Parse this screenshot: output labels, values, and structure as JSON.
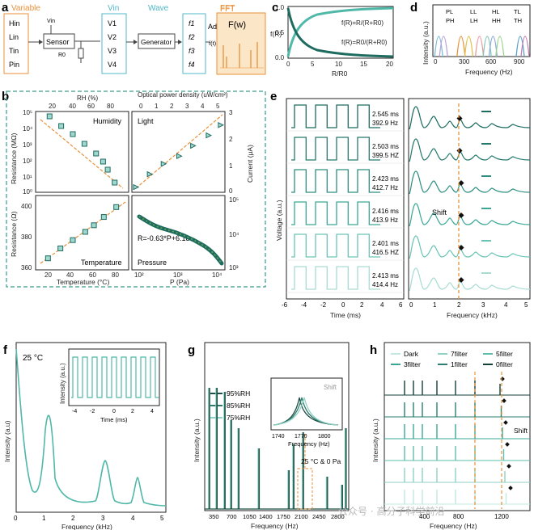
{
  "panel_labels": [
    "a",
    "b",
    "c",
    "d",
    "e",
    "f",
    "g",
    "h"
  ],
  "a": {
    "titles": {
      "variable": "Variable",
      "vin": "Vin",
      "wave": "Wave",
      "fft": "FFT"
    },
    "variables": [
      "Hin",
      "Lin",
      "Tin",
      "Pin"
    ],
    "sensor": "Sensor",
    "vin_small": "Vin",
    "r0": "R0",
    "voltages": [
      "V1",
      "V2",
      "V3",
      "V4"
    ],
    "generator": "Generator",
    "freqs": [
      "f1",
      "f2",
      "f3",
      "f4"
    ],
    "adder": "Adder",
    "adder_formula": "f(t)=∑fn",
    "fw": "F(w)",
    "colors": {
      "variable": "#e8913a",
      "vin": "#4fb8c9",
      "wave": "#4fb8c9",
      "fft": "#e8913a",
      "fft_bg": "#fbe6c8"
    }
  },
  "c": {
    "ylabel": "f(R)",
    "xlabel": "R/R0",
    "eq1": "f(R)=R/(R+R0)",
    "eq2": "f(R)=R0/(R+R0)",
    "xticks": [
      "0",
      "5",
      "10",
      "15",
      "20"
    ],
    "yticks": [
      "0.0",
      "0.5",
      "1.0"
    ]
  },
  "d": {
    "ylabel": "Intensity (a.u.)",
    "xlabel": "Frequency (Hz)",
    "xticks": [
      "0",
      "300",
      "600",
      "900"
    ],
    "legend": [
      "PL",
      "LL",
      "HL",
      "TL",
      "PH",
      "LH",
      "HH",
      "TH"
    ],
    "chart_data": {
      "type": "line",
      "x_range": [
        0,
        1000
      ],
      "peaks_hz": [
        60,
        110,
        290,
        370,
        480,
        560,
        620,
        690,
        900,
        950
      ]
    }
  },
  "b": {
    "humidity": {
      "label": "Humidity",
      "top_axis": "RH (%)",
      "top_ticks": [
        "20",
        "40",
        "60",
        "80"
      ],
      "ylabel": "Resistance (MΩ)",
      "yticks": [
        "10⁰",
        "10¹",
        "10²",
        "10³",
        "10⁴",
        "10⁵"
      ]
    },
    "light": {
      "label": "Light",
      "top_axis": "Optical power density (uW/cm²)",
      "top_ticks": [
        "0",
        "1",
        "2",
        "3",
        "4",
        "5"
      ],
      "ylabel": "Current (μA)",
      "yticks": [
        "0",
        "1",
        "2",
        "3"
      ]
    },
    "temperature": {
      "label": "Temperature",
      "xlabel": "Temperature (°C)",
      "ylabel": "Resistance (Ω)",
      "xticks": [
        "20",
        "40",
        "60",
        "80"
      ],
      "yticks": [
        "360",
        "380",
        "400"
      ]
    },
    "pressure": {
      "label": "Pressure",
      "xlabel": "P (Pa)",
      "ylabel": "Resistance (Ω)",
      "eq": "R=-0.63*P+6.18",
      "xticks": [
        "10²",
        "10³",
        "10⁴"
      ],
      "yticks": [
        "10³",
        "10⁴",
        "10⁵"
      ]
    },
    "chart_data": [
      {
        "type": "scatter",
        "name": "Humidity",
        "x": [
          22,
          32,
          42,
          52,
          62,
          68,
          72,
          78
        ],
        "y_log10": [
          4.7,
          4.1,
          3.6,
          3.0,
          2.4,
          1.9,
          1.4,
          0.6
        ]
      },
      {
        "type": "scatter",
        "name": "Light",
        "x": [
          0,
          0.8,
          1.6,
          2.5,
          3.3,
          4.2,
          4.9
        ],
        "y": [
          0.2,
          0.7,
          1.1,
          1.4,
          1.8,
          2.2,
          2.6
        ]
      },
      {
        "type": "scatter",
        "name": "Temperature",
        "x": [
          25,
          35,
          45,
          55,
          62,
          70,
          80
        ],
        "y": [
          367,
          373,
          378,
          383,
          387,
          392,
          398
        ]
      }
    ]
  },
  "e": {
    "ylabel": "Voltage (a.u.)",
    "xlabel1": "Time (ms)",
    "xlabel2": "Frequency (kHz)",
    "xticks1": [
      "-6",
      "-4",
      "-2",
      "0",
      "2",
      "4",
      "6"
    ],
    "xticks2": [
      "0",
      "1",
      "2",
      "3",
      "4",
      "5"
    ],
    "shift": "Shift",
    "rows": [
      {
        "period": "2.545 ms",
        "freq": "392.9 Hz",
        "color": "#1e6b60"
      },
      {
        "period": "2.503 ms",
        "freq": "399.5 HZ",
        "color": "#267a6d"
      },
      {
        "period": "2.423 ms",
        "freq": "412.7 Hz",
        "color": "#2e8f80"
      },
      {
        "period": "2.416 ms",
        "freq": "413.9 Hz",
        "color": "#3aa796"
      },
      {
        "period": "2.401 ms",
        "freq": "416.5 HZ",
        "color": "#6cc4b6"
      },
      {
        "period": "2.413 ms",
        "freq": "414.4 Hz",
        "color": "#a7dcd3"
      }
    ]
  },
  "f": {
    "temp": "25 °C",
    "ylabel": "Intensity (a.u)",
    "xlabel": "Frequency (kHz)",
    "xticks": [
      "0",
      "1",
      "2",
      "3",
      "4",
      "5"
    ],
    "inset": {
      "ylabel": "Intensity (a.u.)",
      "xlabel": "Time (ms)",
      "xticks": [
        "-4",
        "-2",
        "0",
        "2",
        "4"
      ]
    },
    "chart_data": {
      "type": "line",
      "peaks_khz": [
        0.78,
        2.35,
        3.9
      ],
      "peak_heights": [
        1.0,
        0.35,
        0.25
      ]
    }
  },
  "g": {
    "ylabel": "Intensity (a.u.)",
    "xlabel": "Frequency (Hz)",
    "xticks": [
      "350",
      "700",
      "1050",
      "1400",
      "1750",
      "2100",
      "2450",
      "2800"
    ],
    "legend": [
      "95%RH",
      "85%RH",
      "75%RH"
    ],
    "annotation": "25 °C & 0 Pa",
    "shift": "Shift",
    "inset": {
      "xlabel": "Frequency (Hz)",
      "xticks": [
        "1740",
        "1770",
        "1800"
      ]
    },
    "chart_data": {
      "type": "line",
      "peaks_hz": [
        270,
        410,
        560,
        680,
        820,
        1200,
        1760,
        1850,
        2030,
        2480,
        2760,
        2830
      ]
    }
  },
  "h": {
    "ylabel": "Intensity (a.u.)",
    "xlabel": "Frequency (Hz)",
    "xticks": [
      "400",
      "800",
      "1200"
    ],
    "legend": [
      "Dark",
      "7filter",
      "5filter",
      "3filter",
      "1filter",
      "0filter"
    ],
    "shift": "Shift"
  },
  "watermark": "公众号 · 高分子科学前沿"
}
